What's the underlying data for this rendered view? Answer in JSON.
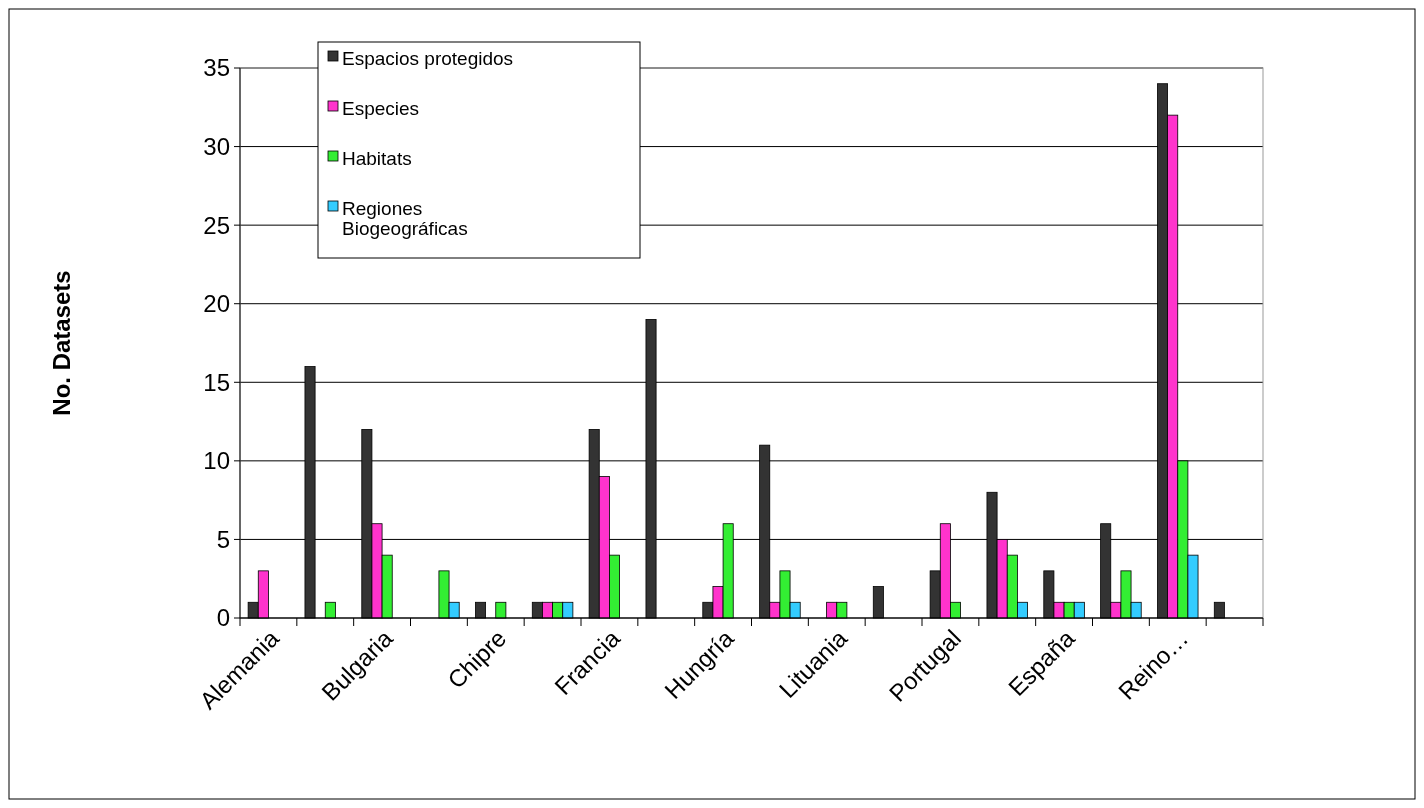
{
  "chart_data": {
    "type": "bar",
    "ylabel": "No. Datasets",
    "categories": [
      "Alemania",
      null,
      "Bulgaria",
      null,
      "Chipre",
      null,
      "Francia",
      null,
      "Hungría",
      null,
      "Lituania",
      null,
      "Portugal",
      null,
      "España",
      null,
      "Reino…",
      null
    ],
    "series": [
      {
        "name": "Espacios protegidos",
        "color": "#333333",
        "values": [
          1,
          16,
          12,
          null,
          1,
          1,
          12,
          19,
          1,
          11,
          null,
          2,
          3,
          8,
          3,
          6,
          34,
          1
        ]
      },
      {
        "name": "Especies",
        "color": "#ff33cc",
        "values": [
          3,
          null,
          6,
          null,
          null,
          1,
          9,
          null,
          2,
          1,
          1,
          null,
          6,
          5,
          1,
          1,
          32,
          null
        ]
      },
      {
        "name": "Habitats",
        "color": "#33ee33",
        "values": [
          null,
          1,
          4,
          3,
          1,
          1,
          4,
          null,
          6,
          3,
          1,
          null,
          1,
          4,
          1,
          3,
          10,
          null
        ]
      },
      {
        "name": "Regiones Biogeográficas",
        "color": "#33ccff",
        "values": [
          null,
          null,
          null,
          1,
          null,
          1,
          null,
          null,
          null,
          1,
          null,
          null,
          null,
          1,
          1,
          1,
          4,
          null
        ]
      }
    ],
    "ylim": [
      0,
      35
    ],
    "yticks": [
      0,
      5,
      10,
      15,
      20,
      25,
      30,
      35
    ],
    "grid": "y",
    "legend": "top left"
  }
}
